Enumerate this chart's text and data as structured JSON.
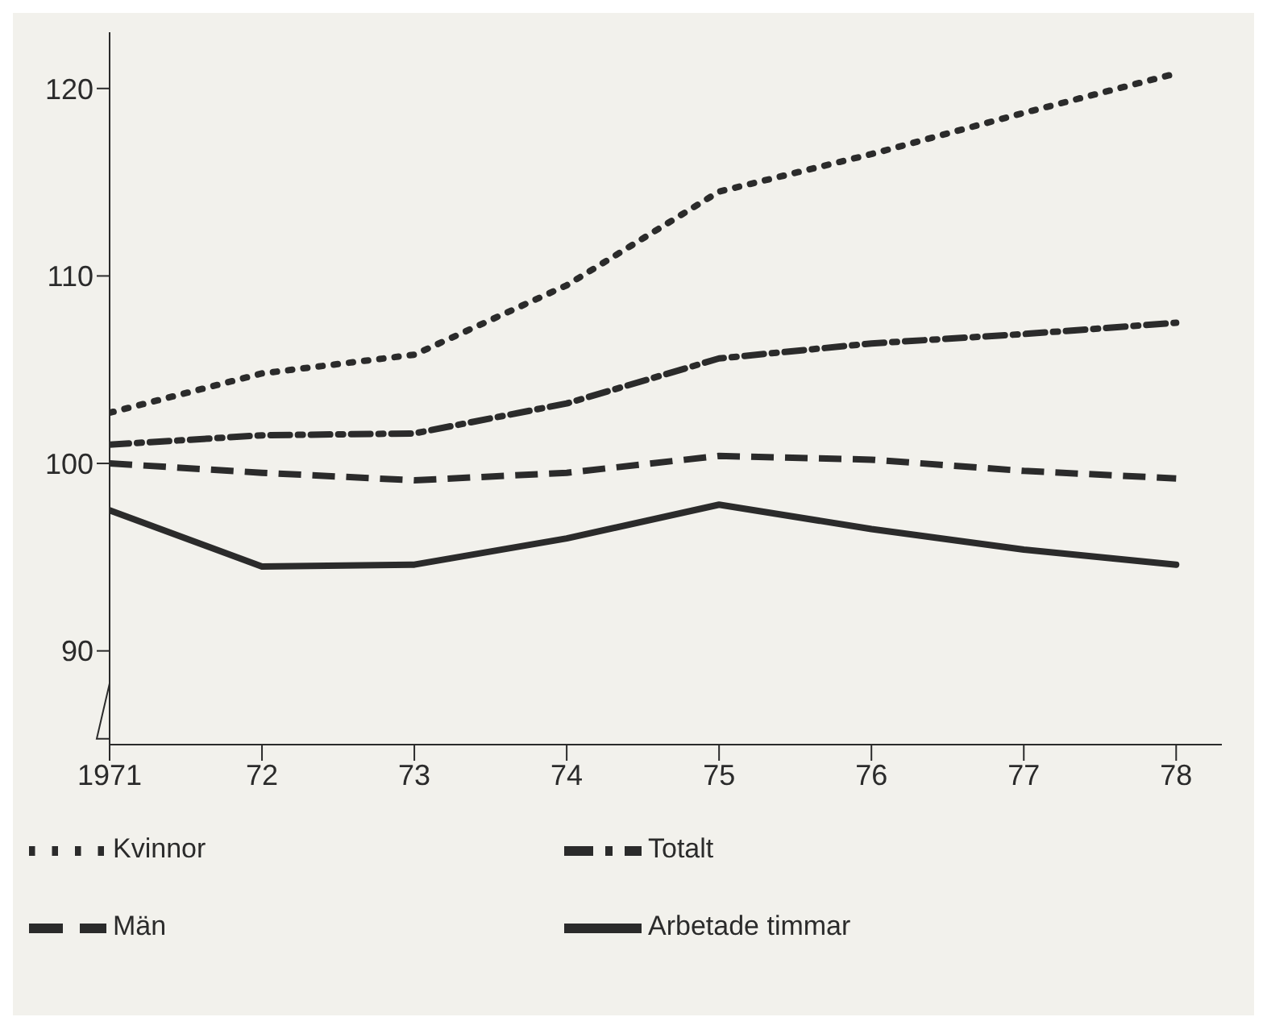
{
  "chart_data": {
    "type": "line",
    "x": [
      1971,
      1972,
      1973,
      1974,
      1975,
      1976,
      1977,
      1978
    ],
    "series": [
      {
        "name": "Kvinnor",
        "color": "#2b2b2b",
        "line_style": "dotted",
        "values": [
          102.7,
          104.8,
          105.8,
          109.5,
          114.5,
          116.5,
          118.7,
          120.8
        ]
      },
      {
        "name": "Totalt",
        "color": "#2b2b2b",
        "line_style": "dashdot",
        "values": [
          101.0,
          101.5,
          101.6,
          103.2,
          105.6,
          106.4,
          106.9,
          107.5
        ]
      },
      {
        "name": "Män",
        "color": "#2b2b2b",
        "line_style": "dashed",
        "values": [
          100.0,
          99.5,
          99.1,
          99.5,
          100.4,
          100.2,
          99.6,
          99.2
        ]
      },
      {
        "name": "Arbetade timmar",
        "color": "#2b2b2b",
        "line_style": "solid",
        "values": [
          97.5,
          94.5,
          94.6,
          96.0,
          97.8,
          96.5,
          95.4,
          94.6
        ]
      }
    ],
    "xlim": [
      1971,
      1978.3
    ],
    "xticks": [
      1971,
      {
        "value": 1972,
        "label": "72"
      },
      {
        "value": 1973,
        "label": "73"
      },
      {
        "value": 1974,
        "label": "74"
      },
      {
        "value": 1975,
        "label": "75"
      },
      {
        "value": 1976,
        "label": "76"
      },
      {
        "value": 1977,
        "label": "77"
      },
      {
        "value": 1978,
        "label": "78"
      }
    ],
    "ylim": [
      85,
      123
    ],
    "yticks": [
      90,
      100,
      110,
      120
    ],
    "grid": false,
    "legend": "bottom",
    "marker": "none"
  }
}
